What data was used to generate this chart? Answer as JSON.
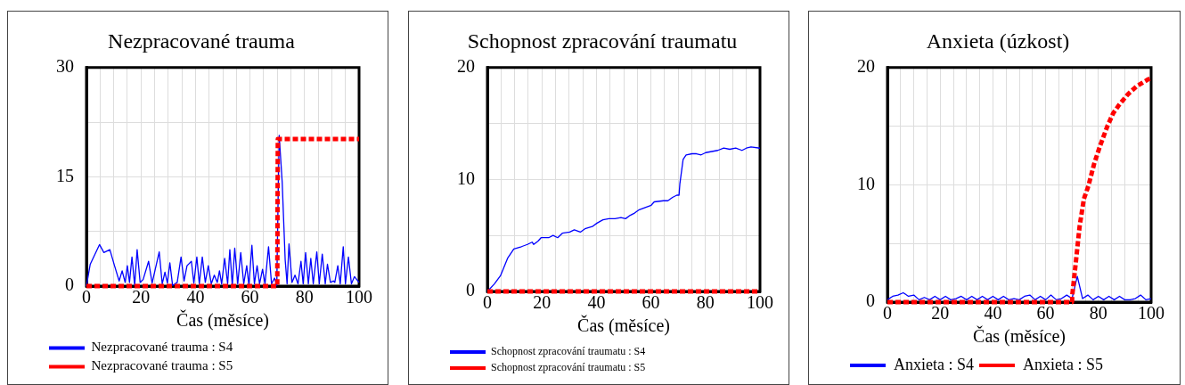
{
  "chart_data": [
    {
      "type": "line",
      "title": "Nezpracované trauma",
      "xlabel": "Čas (měsíce)",
      "xlim": [
        0,
        100
      ],
      "ylim": [
        0,
        30
      ],
      "xticks": [
        0,
        {
          "value": 5,
          "label": null
        },
        {
          "value": 10,
          "label": null
        },
        {
          "value": 15,
          "label": null
        },
        20,
        {
          "value": 25,
          "label": null
        },
        {
          "value": 30,
          "label": null
        },
        {
          "value": 35,
          "label": null
        },
        40,
        {
          "value": 45,
          "label": null
        },
        {
          "value": 50,
          "label": null
        },
        {
          "value": 55,
          "label": null
        },
        60,
        {
          "value": 65,
          "label": null
        },
        {
          "value": 70,
          "label": null
        },
        {
          "value": 75,
          "label": null
        },
        80,
        {
          "value": 85,
          "label": null
        },
        {
          "value": 90,
          "label": null
        },
        {
          "value": 95,
          "label": null
        },
        100
      ],
      "yticks": [
        0,
        {
          "value": 7.5,
          "label": null
        },
        15,
        {
          "value": 22.5,
          "label": null
        },
        30
      ],
      "grid": true,
      "legend": "bottom",
      "marker": "none",
      "series": [
        {
          "name": "Nezpracované trauma : S4",
          "color": "#0000ff",
          "line_style": "solid",
          "x": [
            0,
            1.4,
            4.8,
            6.4,
            8.6,
            10.3,
            12,
            13.1,
            14.2,
            15,
            15.8,
            16.7,
            17.7,
            18.6,
            19.7,
            20.8,
            22.8,
            24.1,
            26.7,
            27.8,
            28.8,
            29.7,
            30.6,
            31.6,
            33.3,
            34.7,
            35.8,
            36.9,
            38.5,
            39.4,
            40.5,
            41.4,
            42.5,
            43.6,
            44.7,
            45.8,
            46.9,
            48,
            48.8,
            49.6,
            50.7,
            51.8,
            52.6,
            53.5,
            54.4,
            55.5,
            56.6,
            57.7,
            58.8,
            59.6,
            60.7,
            61.6,
            62.6,
            63.5,
            64.6,
            65.5,
            66.8,
            67.9,
            69,
            69.8,
            70.7,
            71.8,
            72.9,
            73.6,
            74.3,
            75.4,
            76.5,
            77.6,
            78.7,
            79.5,
            80.4,
            81.4,
            82.3,
            83.2,
            84.5,
            85.4,
            86.5,
            87.6,
            88.4,
            89.5,
            90.6,
            91.1,
            92.2,
            93.1,
            94.2,
            95,
            96.1,
            97.2,
            98.3,
            100
          ],
          "values": [
            0,
            3.0,
            5.7,
            4.6,
            5.0,
            2.8,
            0.7,
            2.1,
            0.5,
            2.8,
            0.5,
            4.0,
            0.1,
            5.0,
            0.5,
            0.9,
            3.4,
            0.4,
            4.7,
            0.3,
            1.9,
            0.4,
            3.2,
            0.1,
            0.5,
            4.0,
            0.7,
            2.8,
            3.4,
            0.4,
            4.0,
            0.3,
            4.0,
            0.5,
            2.8,
            0.3,
            1.5,
            0.5,
            2.1,
            0.3,
            3.8,
            0.3,
            5.0,
            0.1,
            5.2,
            0.3,
            4.6,
            0.3,
            2.8,
            0.1,
            5.6,
            0.3,
            2.8,
            0.3,
            2.3,
            0.3,
            5.4,
            0.3,
            1.1,
            0.1,
            20.7,
            14.3,
            3.6,
            0.3,
            5.8,
            0.5,
            1.5,
            0.3,
            3.4,
            0.3,
            4.6,
            0.3,
            3.8,
            0.3,
            4.7,
            0.3,
            4.4,
            0.3,
            3.0,
            0.5,
            0.7,
            0.5,
            2.8,
            0.3,
            5.4,
            0.3,
            4.0,
            0.3,
            1.3,
            0.5
          ]
        },
        {
          "name": "Nezpracované trauma : S5",
          "color": "#ff0000",
          "line_style": "dotted",
          "x": [
            0,
            70,
            70.2,
            100
          ],
          "values": [
            0,
            0,
            20.2,
            20.2
          ]
        }
      ]
    },
    {
      "type": "line",
      "title": "Schopnost zpracování traumatu",
      "xlabel": "Čas (měsíce)",
      "xlim": [
        0,
        100
      ],
      "ylim": [
        0,
        20
      ],
      "xticks": [
        0,
        {
          "value": 5,
          "label": null
        },
        {
          "value": 10,
          "label": null
        },
        {
          "value": 15,
          "label": null
        },
        20,
        {
          "value": 25,
          "label": null
        },
        {
          "value": 30,
          "label": null
        },
        {
          "value": 35,
          "label": null
        },
        40,
        {
          "value": 45,
          "label": null
        },
        {
          "value": 50,
          "label": null
        },
        {
          "value": 55,
          "label": null
        },
        60,
        {
          "value": 65,
          "label": null
        },
        {
          "value": 70,
          "label": null
        },
        {
          "value": 75,
          "label": null
        },
        80,
        {
          "value": 85,
          "label": null
        },
        {
          "value": 90,
          "label": null
        },
        {
          "value": 95,
          "label": null
        },
        100
      ],
      "yticks": [
        0,
        {
          "value": 5,
          "label": null
        },
        10,
        {
          "value": 15,
          "label": null
        },
        20
      ],
      "grid": true,
      "legend": "bottom",
      "marker": "none",
      "series": [
        {
          "name": "Schopnost zpracování traumatu : S4",
          "color": "#0000ff",
          "line_style": "solid",
          "x": [
            0,
            2.5,
            4.8,
            7.5,
            9.7,
            12.5,
            14.7,
            16.4,
            17,
            18.6,
            19.7,
            22.5,
            24.1,
            25.8,
            27.5,
            30.2,
            31.9,
            34.1,
            35.8,
            38.5,
            40.2,
            42.4,
            44.6,
            46.8,
            49,
            50.7,
            52.4,
            54,
            55.7,
            57.9,
            60.1,
            61.2,
            64.6,
            66.2,
            67.9,
            69.5,
            70.3,
            70.6,
            71.8,
            72.9,
            75.1,
            76.7,
            78.4,
            80.1,
            82.3,
            84.5,
            86.7,
            88.9,
            91.1,
            93.4,
            95,
            96.7,
            100
          ],
          "values": [
            0,
            0.65,
            1.4,
            3.0,
            3.8,
            4.0,
            4.2,
            4.4,
            4.2,
            4.5,
            4.8,
            4.8,
            5.0,
            4.8,
            5.2,
            5.3,
            5.5,
            5.3,
            5.6,
            5.8,
            6.1,
            6.4,
            6.5,
            6.5,
            6.6,
            6.5,
            6.8,
            7.0,
            7.3,
            7.5,
            7.7,
            8.0,
            8.1,
            8.1,
            8.4,
            8.6,
            8.6,
            9.6,
            11.8,
            12.2,
            12.3,
            12.3,
            12.2,
            12.4,
            12.5,
            12.6,
            12.8,
            12.7,
            12.8,
            12.6,
            12.8,
            12.9,
            12.8
          ]
        },
        {
          "name": "Schopnost zpracování traumatu : S5",
          "color": "#ff0000",
          "line_style": "dotted",
          "x": [
            0,
            100
          ],
          "values": [
            0,
            0
          ]
        }
      ]
    },
    {
      "type": "line",
      "title": "Anxieta (úzkost)",
      "xlabel": "Čas (měsíce)",
      "xlim": [
        0,
        100
      ],
      "ylim": [
        0,
        20
      ],
      "xticks": [
        0,
        {
          "value": 5,
          "label": null
        },
        {
          "value": 10,
          "label": null
        },
        {
          "value": 15,
          "label": null
        },
        20,
        {
          "value": 25,
          "label": null
        },
        {
          "value": 30,
          "label": null
        },
        {
          "value": 35,
          "label": null
        },
        40,
        {
          "value": 45,
          "label": null
        },
        {
          "value": 50,
          "label": null
        },
        {
          "value": 55,
          "label": null
        },
        60,
        {
          "value": 65,
          "label": null
        },
        {
          "value": 70,
          "label": null
        },
        {
          "value": 75,
          "label": null
        },
        80,
        {
          "value": 85,
          "label": null
        },
        {
          "value": 90,
          "label": null
        },
        {
          "value": 95,
          "label": null
        },
        100
      ],
      "yticks": [
        0,
        {
          "value": 5,
          "label": null
        },
        10,
        {
          "value": 15,
          "label": null
        },
        20
      ],
      "grid": true,
      "legend": "bottom",
      "marker": "none",
      "series": [
        {
          "name": "Anxieta : S4",
          "color": "#0000ff",
          "line_style": "solid",
          "x": [
            0,
            2,
            4,
            6,
            8,
            10,
            12,
            14,
            16,
            18,
            20,
            22,
            24,
            26,
            28,
            30,
            32,
            34,
            36,
            38,
            40,
            42,
            44,
            46,
            48,
            50,
            52,
            54,
            56,
            58,
            60,
            62,
            64,
            66,
            68,
            70,
            72,
            74,
            76,
            78,
            80,
            82,
            84,
            86,
            88,
            90,
            92,
            94,
            96,
            98,
            100
          ],
          "values": [
            0.2,
            0.5,
            0.6,
            0.8,
            0.5,
            0.6,
            0.2,
            0.4,
            0.2,
            0.5,
            0.2,
            0.5,
            0.2,
            0.3,
            0.5,
            0.2,
            0.5,
            0.2,
            0.5,
            0.2,
            0.5,
            0.2,
            0.5,
            0.2,
            0.3,
            0.2,
            0.5,
            0.6,
            0.2,
            0.5,
            0.2,
            0.6,
            0.2,
            0.3,
            0.6,
            0.3,
            2.2,
            0.3,
            0.6,
            0.2,
            0.5,
            0.2,
            0.5,
            0.2,
            0.5,
            0.2,
            0.2,
            0.3,
            0.6,
            0.2,
            0.3
          ]
        },
        {
          "name": "Anxieta : S5",
          "color": "#ff0000",
          "line_style": "dotted",
          "x": [
            0,
            70,
            70.1,
            71.2,
            72.9,
            74.5,
            76.2,
            78.4,
            80.6,
            83.4,
            85.6,
            87.8,
            91.1,
            94.5,
            98.9,
            100
          ],
          "values": [
            0,
            0,
            0.6,
            2.9,
            6.5,
            8.8,
            9.9,
            11.8,
            13.3,
            15.0,
            16.1,
            16.8,
            17.7,
            18.4,
            19.0,
            19.1
          ]
        }
      ]
    }
  ]
}
